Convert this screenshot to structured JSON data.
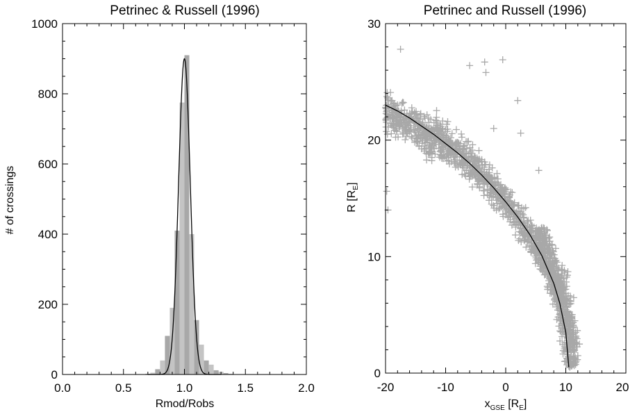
{
  "chart_data": [
    {
      "type": "bar",
      "title": "Petrinec & Russell (1996)",
      "xlabel": "Rmod/Robs",
      "ylabel": "# of crossings",
      "xlim": [
        0.0,
        2.0
      ],
      "ylim": [
        0,
        1000
      ],
      "x_ticks": [
        0.0,
        0.5,
        1.0,
        1.5,
        2.0
      ],
      "x_tick_labels": [
        "0.0",
        "0.5",
        "1.0",
        "1.5",
        "2.0"
      ],
      "y_ticks": [
        0,
        200,
        400,
        600,
        800,
        1000
      ],
      "y_tick_labels": [
        "0",
        "200",
        "400",
        "600",
        "800",
        "1000"
      ],
      "bin_width": 0.04,
      "bin_centers": [
        0.7,
        0.74,
        0.78,
        0.82,
        0.86,
        0.9,
        0.94,
        0.98,
        1.02,
        1.06,
        1.1,
        1.14,
        1.18,
        1.22,
        1.26,
        1.3,
        1.34,
        1.38
      ],
      "values": [
        2,
        5,
        15,
        40,
        110,
        190,
        410,
        775,
        910,
        400,
        155,
        85,
        40,
        28,
        12,
        8,
        4,
        2
      ],
      "fit_curve": {
        "type": "gaussian",
        "center": 1.0,
        "peak": 900,
        "sigma": 0.048,
        "color": "#000000"
      },
      "bar_colors": [
        "#a8a8a8",
        "#c4c4c4"
      ],
      "grid": false
    },
    {
      "type": "scatter",
      "title": "Petrinec and Russell (1996)",
      "xlabel": "x",
      "xlabel_sub": "GSE",
      "xlabel_unit": " [R",
      "xlabel_unit_sub": "E",
      "xlabel_end": "]",
      "ylabel": "R [R",
      "ylabel_sub": "E",
      "ylabel_end": "]",
      "xlim": [
        -20,
        20
      ],
      "ylim": [
        0,
        30
      ],
      "x_ticks": [
        -20,
        -10,
        0,
        10,
        20
      ],
      "x_tick_labels": [
        "-20",
        "-10",
        "0",
        "10",
        "20"
      ],
      "y_ticks": [
        0,
        10,
        20,
        30
      ],
      "y_tick_labels": [
        "0",
        "10",
        "20",
        "30"
      ],
      "marker": "plus",
      "marker_color": "#a8a8a8",
      "model_curve": {
        "color": "#000000",
        "x": [
          -20,
          -18,
          -16,
          -14,
          -12,
          -10,
          -8,
          -6,
          -4,
          -2,
          0,
          2,
          4,
          6,
          8,
          9,
          10,
          10.5
        ],
        "y": [
          23.0,
          22.5,
          21.9,
          21.2,
          20.5,
          19.7,
          18.9,
          18.0,
          17.0,
          15.9,
          14.7,
          13.4,
          11.9,
          10.1,
          7.7,
          6.0,
          3.5,
          0.5
        ]
      },
      "outliers": [
        {
          "x": -17.5,
          "y": 27.8
        },
        {
          "x": -6.0,
          "y": 26.4
        },
        {
          "x": -3.5,
          "y": 26.7
        },
        {
          "x": -3.3,
          "y": 25.8
        },
        {
          "x": -0.5,
          "y": 26.9
        },
        {
          "x": 2.0,
          "y": 23.4
        },
        {
          "x": 2.5,
          "y": 20.6
        },
        {
          "x": -2.0,
          "y": 21.0
        },
        {
          "x": 5.5,
          "y": 17.4
        },
        {
          "x": -19.8,
          "y": 15.6
        },
        {
          "x": -19.6,
          "y": 14.0
        },
        {
          "x": -5.5,
          "y": 19.6
        },
        {
          "x": 12.0,
          "y": 1.5
        },
        {
          "x": 11.5,
          "y": 4.5
        },
        {
          "x": 8.5,
          "y": 4.6
        }
      ],
      "grid": false
    }
  ]
}
